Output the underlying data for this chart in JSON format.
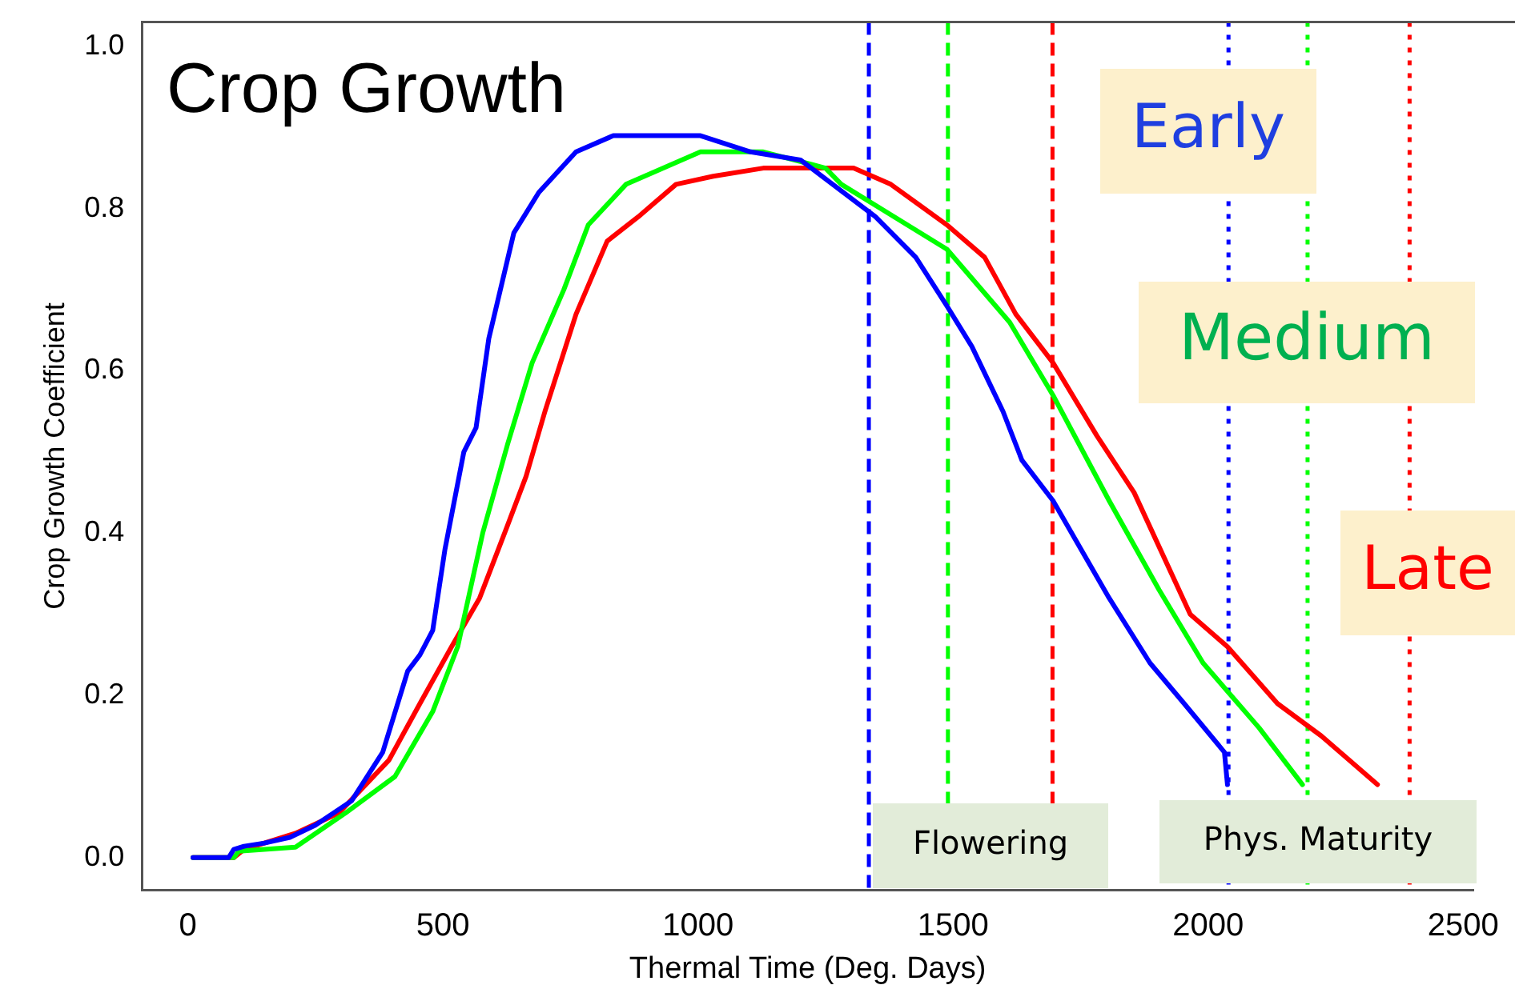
{
  "chart_data": {
    "type": "line",
    "xlabel": "Thermal Time (Deg. Days)",
    "ylabel": "Crop Growth Coefficient",
    "xlim": [
      -90,
      2520
    ],
    "ylim": [
      -0.04,
      1.03
    ],
    "xticks": [
      0,
      500,
      1000,
      1500,
      2000,
      2500
    ],
    "yticks": [
      {
        "value": 0,
        "label": "0.0"
      },
      0.2,
      0.4,
      0.6,
      0.8,
      {
        "value": 1,
        "label": "1.0"
      }
    ],
    "grid": false,
    "legend": false,
    "marker": "none",
    "line_style": "solid",
    "series": [
      {
        "color": "#0000ff",
        "x": [
          10,
          80,
          90,
          110,
          150,
          200,
          250,
          321,
          382,
          431,
          455,
          480,
          504,
          541,
          565,
          590,
          639,
          688,
          761,
          834,
          908,
          1005,
          1103,
          1201,
          1348,
          1427,
          1488,
          1537,
          1598,
          1635,
          1696,
          1806,
          1886,
          1953,
          2032,
          2038
        ],
        "values": [
          0,
          0,
          0.01,
          0.014,
          0.018,
          0.025,
          0.04,
          0.07,
          0.13,
          0.23,
          0.25,
          0.28,
          0.38,
          0.5,
          0.53,
          0.64,
          0.77,
          0.82,
          0.87,
          0.89,
          0.89,
          0.89,
          0.87,
          0.86,
          0.79,
          0.74,
          0.68,
          0.63,
          0.55,
          0.49,
          0.44,
          0.32,
          0.24,
          0.19,
          0.13,
          0.09
        ]
      },
      {
        "color": "#00ff00",
        "x": [
          10,
          90,
          100,
          211,
          309,
          406,
          480,
          529,
          578,
          627,
          675,
          737,
          785,
          859,
          1005,
          1128,
          1250,
          1281,
          1488,
          1611,
          1696,
          1806,
          1904,
          1990,
          2100,
          2185
        ],
        "values": [
          0,
          0,
          0.008,
          0.013,
          0.055,
          0.1,
          0.18,
          0.26,
          0.4,
          0.51,
          0.61,
          0.7,
          0.78,
          0.83,
          0.87,
          0.87,
          0.85,
          0.83,
          0.75,
          0.66,
          0.57,
          0.44,
          0.33,
          0.24,
          0.16,
          0.09
        ]
      },
      {
        "color": "#ff0000",
        "x": [
          10,
          90,
          110,
          211,
          296,
          394,
          455,
          517,
          572,
          627,
          663,
          700,
          761,
          822,
          883,
          957,
          1030,
          1128,
          1305,
          1378,
          1488,
          1562,
          1623,
          1696,
          1782,
          1855,
          1965,
          2038,
          2136,
          2222,
          2332
        ],
        "values": [
          0,
          0,
          0.01,
          0.03,
          0.055,
          0.12,
          0.19,
          0.26,
          0.32,
          0.41,
          0.47,
          0.55,
          0.67,
          0.76,
          0.79,
          0.83,
          0.84,
          0.85,
          0.85,
          0.83,
          0.78,
          0.74,
          0.67,
          0.61,
          0.52,
          0.45,
          0.3,
          0.26,
          0.19,
          0.15,
          0.09
        ]
      }
    ],
    "ref_lines": [
      {
        "axis": "x",
        "value": 1335,
        "color": "#0000ff",
        "line_style": "dashed"
      },
      {
        "axis": "x",
        "value": 1490,
        "color": "#00ff00",
        "line_style": "dashed"
      },
      {
        "axis": "x",
        "value": 1695,
        "color": "#ff0000",
        "line_style": "dashed"
      },
      {
        "axis": "x",
        "value": 2040,
        "color": "#0000ff",
        "line_style": "dotted"
      },
      {
        "axis": "x",
        "value": 2195,
        "color": "#00ff00",
        "line_style": "dotted"
      },
      {
        "axis": "x",
        "value": 2395,
        "color": "#ff0000",
        "line_style": "dotted"
      }
    ],
    "annotations": [
      "Crop Growth",
      "Early",
      "Medium",
      "Late",
      "Flowering",
      "Phys. Maturity"
    ]
  }
}
